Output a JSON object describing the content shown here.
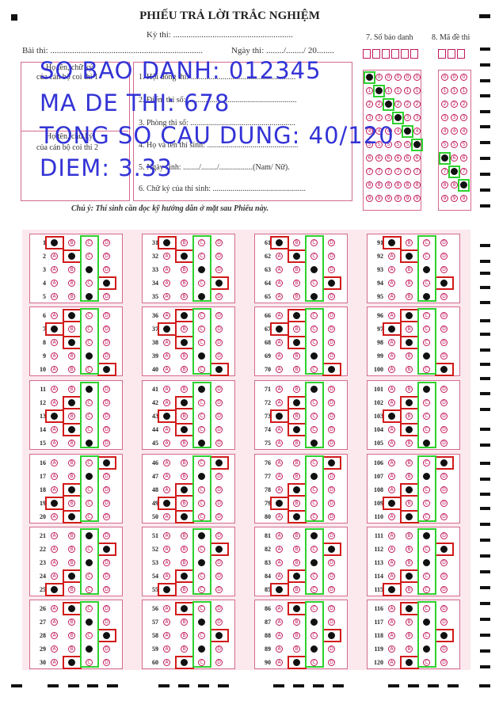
{
  "sheet": {
    "title": "PHIẾU TRẢ LỜI TRẮC NGHIỆM",
    "ky_thi": "Kỳ thi: .......................................................",
    "bai_thi": "Bài thi: ......................................................................",
    "ngay_thi": "Ngày thi: ......../......../ 20........",
    "sbd_label": "7. Số báo danh",
    "made_label": "8. Mã đề thi",
    "note": "Chú ý: Thí sinh cần đọc kỹ hướng dẫn ở mặt sau Phiếu này."
  },
  "info": {
    "signer1": "Họ tên, chữ ký",
    "signer1b": "của cán bộ coi thi 1",
    "signer2": "Họ tên, chữ ký",
    "signer2b": "của cán bộ coi thi 2",
    "line1": "1. Hội đồng thi: .....................................................",
    "line2": "2. Điểm thi số: .......................................................",
    "line3": "3. Phòng thi số: .....................................................",
    "line4": "4. Họ và tên thí sinh: ..............................................",
    "line5": "5. Ngày sinh: ......../......../.................(Nam/ Nữ).",
    "line6": "6. Chữ ký của thí sinh: ..............................................."
  },
  "overlay": {
    "line1": "SO BAO DANH: 012345",
    "line2": "MA DE THI: 678",
    "line3": "TONG SO CAU DUNG: 40/120",
    "line4": "DIEM: 3.33"
  },
  "options": [
    "A",
    "B",
    "C",
    "D"
  ],
  "sbd_digits": [
    "0",
    "1",
    "2",
    "3",
    "4",
    "5"
  ],
  "made_digits": [
    "6",
    "7",
    "8"
  ],
  "answers": {
    "correct_option": "C",
    "questions": [
      {
        "n": 1,
        "marked": "A"
      },
      {
        "n": 2,
        "marked": "B"
      },
      {
        "n": 3,
        "marked": "C"
      },
      {
        "n": 4,
        "marked": "D"
      },
      {
        "n": 5,
        "marked": "C"
      },
      {
        "n": 6,
        "marked": "B"
      },
      {
        "n": 7,
        "marked": "A"
      },
      {
        "n": 8,
        "marked": "B"
      },
      {
        "n": 9,
        "marked": "C"
      },
      {
        "n": 10,
        "marked": "D"
      },
      {
        "n": 11,
        "marked": "C"
      },
      {
        "n": 12,
        "marked": "B"
      },
      {
        "n": 13,
        "marked": "A"
      },
      {
        "n": 14,
        "marked": "B"
      },
      {
        "n": 15,
        "marked": "C"
      },
      {
        "n": 16,
        "marked": "D"
      },
      {
        "n": 17,
        "marked": "C"
      },
      {
        "n": 18,
        "marked": "B"
      },
      {
        "n": 19,
        "marked": "A"
      },
      {
        "n": 20,
        "marked": "B"
      },
      {
        "n": 21,
        "marked": "C"
      },
      {
        "n": 22,
        "marked": "D"
      },
      {
        "n": 23,
        "marked": "C"
      },
      {
        "n": 24,
        "marked": "B"
      },
      {
        "n": 25,
        "marked": "A"
      },
      {
        "n": 26,
        "marked": "B"
      },
      {
        "n": 27,
        "marked": "C"
      },
      {
        "n": 28,
        "marked": "D"
      },
      {
        "n": 29,
        "marked": "C"
      },
      {
        "n": 30,
        "marked": "B"
      }
    ]
  }
}
